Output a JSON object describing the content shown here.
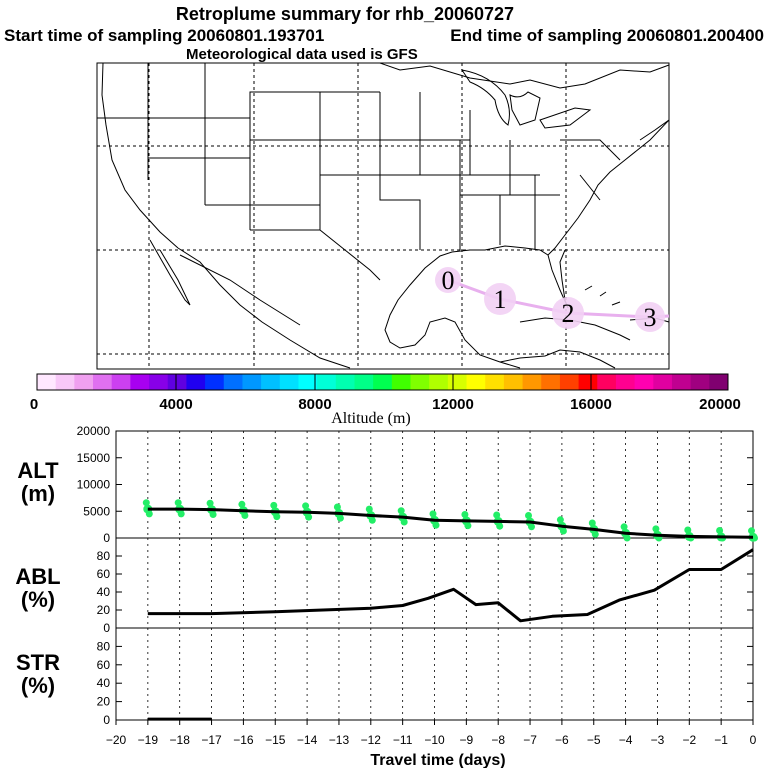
{
  "header": {
    "title": "Retroplume summary for rhb_20060727",
    "start_label": "Start time of sampling 20060801.193701",
    "end_label": "End time of sampling 20060801.200400",
    "met_label": "Meteorological data used is GFS"
  },
  "map": {
    "trajectory_color": "#e8b0ee",
    "day_markers": [
      "0",
      "1",
      "2",
      "3"
    ]
  },
  "colorbar": {
    "title": "Altitude (m)",
    "tick_labels": [
      "0",
      "4000",
      "8000",
      "12000",
      "16000",
      "20000"
    ],
    "colors": [
      "#ffe8ff",
      "#f8c8f8",
      "#f0a0f0",
      "#e070f0",
      "#cc40f0",
      "#a800f0",
      "#8800e8",
      "#6000e0",
      "#2000f0",
      "#0030ff",
      "#0070ff",
      "#0098ff",
      "#00c0ff",
      "#00e0ff",
      "#00ffff",
      "#00ffd8",
      "#00ffb0",
      "#00ff88",
      "#00ff50",
      "#40ff00",
      "#80ff00",
      "#b0ff00",
      "#d8ff00",
      "#ffff00",
      "#ffe000",
      "#ffc000",
      "#ff9800",
      "#ff7000",
      "#ff4000",
      "#ff0000",
      "#ff0060",
      "#ff0090",
      "#ff00b0",
      "#e000a0",
      "#c00090",
      "#a00080",
      "#800070"
    ]
  },
  "chart_data": [
    {
      "type": "line",
      "panel": "ALT",
      "ylabel": "ALT (m)",
      "ylabel_line1": "ALT",
      "ylabel_line2": "(m)",
      "ylim": [
        0,
        20000
      ],
      "yticks": [
        0,
        5000,
        10000,
        15000,
        20000
      ],
      "x": [
        -19,
        -18,
        -17,
        -16,
        -15,
        -14,
        -13,
        -12,
        -11,
        -10,
        -9,
        -8,
        -7,
        -6,
        -5,
        -4,
        -3,
        -2,
        -1,
        0
      ],
      "values": [
        5400,
        5400,
        5300,
        5100,
        4900,
        4800,
        4600,
        4200,
        3900,
        3300,
        3200,
        3100,
        3000,
        2200,
        1600,
        900,
        500,
        300,
        200,
        150
      ],
      "scatter_color": "#22ee66"
    },
    {
      "type": "line",
      "panel": "ABL",
      "ylabel": "ABL (%)",
      "ylabel_line1": "ABL",
      "ylabel_line2": "(%)",
      "ylim": [
        0,
        100
      ],
      "yticks": [
        0,
        20,
        40,
        60,
        80
      ],
      "x": [
        -19,
        -17,
        -15,
        -12,
        -11,
        -10.2,
        -9.4,
        -8.7,
        -8,
        -7.3,
        -6.3,
        -5.2,
        -4.2,
        -3.1,
        -2,
        -1,
        0
      ],
      "values": [
        16,
        16,
        18,
        22,
        25,
        33,
        43,
        26,
        28,
        8,
        13,
        15,
        31,
        42,
        65,
        65,
        87
      ]
    },
    {
      "type": "line",
      "panel": "STR",
      "ylabel": "STR (%)",
      "ylabel_line1": "STR",
      "ylabel_line2": "(%)",
      "ylim": [
        0,
        100
      ],
      "yticks": [
        0,
        20,
        40,
        60,
        80
      ],
      "x": [
        -19,
        -17
      ],
      "values": [
        1,
        1
      ]
    }
  ],
  "xaxis": {
    "label": "Travel time (days)",
    "xlim": [
      -20,
      0
    ],
    "tick_labels": [
      "−20",
      "−19",
      "−18",
      "−17",
      "−16",
      "−15",
      "−14",
      "−13",
      "−12",
      "−11",
      "−10",
      "−9",
      "−8",
      "−7",
      "−6",
      "−5",
      "−4",
      "−3",
      "−2",
      "−1",
      "0"
    ]
  }
}
